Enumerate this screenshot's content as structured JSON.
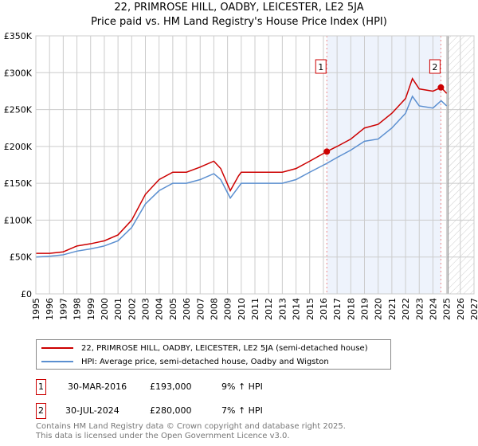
{
  "chart_data": {
    "type": "line",
    "title": "22, PRIMROSE HILL, OADBY, LEICESTER, LE2 5JA",
    "subtitle": "Price paid vs. HM Land Registry's House Price Index (HPI)",
    "xlim": [
      1995,
      2027
    ],
    "ylim": [
      0,
      350000
    ],
    "xticks": [
      "1995",
      "1996",
      "1997",
      "1998",
      "1999",
      "2000",
      "2001",
      "2002",
      "2003",
      "2004",
      "2005",
      "2006",
      "2007",
      "2008",
      "2009",
      "2010",
      "2011",
      "2012",
      "2013",
      "2014",
      "2015",
      "2016",
      "2017",
      "2018",
      "2019",
      "2020",
      "2021",
      "2022",
      "2023",
      "2024",
      "2025",
      "2026",
      "2027"
    ],
    "yticks": [
      {
        "v": 0,
        "label": "£0"
      },
      {
        "v": 50000,
        "label": "£50K"
      },
      {
        "v": 100000,
        "label": "£100K"
      },
      {
        "v": 150000,
        "label": "£150K"
      },
      {
        "v": 200000,
        "label": "£200K"
      },
      {
        "v": 250000,
        "label": "£250K"
      },
      {
        "v": 300000,
        "label": "£300K"
      },
      {
        "v": 350000,
        "label": "£350K"
      }
    ],
    "grid": true,
    "series": [
      {
        "name": "22, PRIMROSE HILL, OADBY, LEICESTER, LE2 5JA (semi-detached house)",
        "color": "#cc0000",
        "x": [
          1995,
          1996,
          1997,
          1998,
          1999,
          2000,
          2001,
          2002,
          2003,
          2004,
          2005,
          2006,
          2007,
          2008,
          2008.5,
          2009.2,
          2009.8,
          2010,
          2011,
          2012,
          2013,
          2014,
          2015,
          2016.25,
          2017,
          2018,
          2019,
          2020,
          2021,
          2022,
          2022.5,
          2023,
          2024,
          2024.6,
          2025
        ],
        "y": [
          55000,
          55000,
          57000,
          65000,
          68000,
          72000,
          80000,
          100000,
          135000,
          155000,
          165000,
          165000,
          172000,
          180000,
          170000,
          140000,
          160000,
          165000,
          165000,
          165000,
          165000,
          170000,
          180000,
          193000,
          200000,
          210000,
          225000,
          230000,
          245000,
          265000,
          292000,
          278000,
          275000,
          280000,
          272000
        ]
      },
      {
        "name": "HPI: Average price, semi-detached house, Oadby and Wigston",
        "color": "#5b8fd0",
        "x": [
          1995,
          1996,
          1997,
          1998,
          1999,
          2000,
          2001,
          2002,
          2003,
          2004,
          2005,
          2006,
          2007,
          2008,
          2008.5,
          2009.2,
          2009.8,
          2010,
          2011,
          2012,
          2013,
          2014,
          2015,
          2016.25,
          2017,
          2018,
          2019,
          2020,
          2021,
          2022,
          2022.5,
          2023,
          2024,
          2024.6,
          2025
        ],
        "y": [
          50000,
          51000,
          53000,
          58000,
          61000,
          65000,
          72000,
          90000,
          122000,
          140000,
          150000,
          150000,
          155000,
          163000,
          155000,
          130000,
          145000,
          150000,
          150000,
          150000,
          150000,
          155000,
          165000,
          177000,
          185000,
          195000,
          207000,
          210000,
          225000,
          245000,
          268000,
          255000,
          252000,
          262000,
          255000
        ]
      }
    ],
    "annotations": [
      {
        "label": "1",
        "x": 2016.25,
        "y": 193000,
        "date": "30-MAR-2016",
        "price": "£193,000",
        "hpi": "9% ↑ HPI"
      },
      {
        "label": "2",
        "x": 2024.58,
        "y": 280000,
        "date": "30-JUL-2024",
        "price": "£280,000",
        "hpi": "7% ↑ HPI"
      }
    ],
    "forecast_start": 2025.1,
    "legend_position": "below"
  },
  "footer": {
    "line1": "Contains HM Land Registry data © Crown copyright and database right 2025.",
    "line2": "This data is licensed under the Open Government Licence v3.0."
  }
}
